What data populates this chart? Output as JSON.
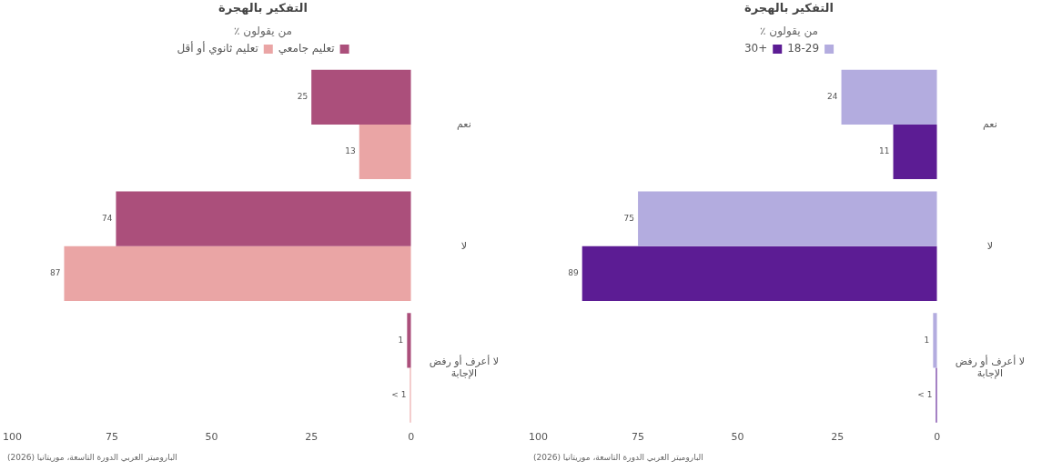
{
  "chart_data": [
    {
      "type": "bar",
      "orientation": "horizontal",
      "title": "التفكير بالهجرة",
      "subtitle": "٪ من يقولون",
      "categories": [
        "نعم",
        "لا",
        "لا أعرف أو رفض الإجابة"
      ],
      "series": [
        {
          "name": "تعليم جامعي",
          "color": "#ab4f7b",
          "values": [
            25,
            74,
            1
          ]
        },
        {
          "name": "تعليم ثانوي أو أقل",
          "color": "#eaa5a5",
          "values": [
            13,
            87,
            0.3
          ],
          "value_labels": [
            "13",
            "87",
            "< 1"
          ]
        }
      ],
      "xlim": [
        100,
        0
      ],
      "xticks": [
        100,
        75,
        50,
        25,
        0
      ],
      "grid": false,
      "legend": "top",
      "data_labels": true,
      "annotations": [
        "الباروميتر العربي الدورة التاسعة، موريتانيا (2026)"
      ]
    },
    {
      "type": "bar",
      "orientation": "horizontal",
      "title": "التفكير بالهجرة",
      "subtitle": "٪ من يقولون",
      "categories": [
        "نعم",
        "لا",
        "لا أعرف أو رفض الإجابة"
      ],
      "series": [
        {
          "name": "18-29",
          "color": "#b3acdf",
          "values": [
            24,
            75,
            1
          ]
        },
        {
          "name": "30+",
          "color": "#5c1c94",
          "values": [
            11,
            89,
            0.3
          ],
          "value_labels": [
            "11",
            "89",
            "< 1"
          ]
        }
      ],
      "xlim": [
        100,
        0
      ],
      "xticks": [
        100,
        75,
        50,
        25,
        0
      ],
      "grid": false,
      "legend": "top",
      "data_labels": true,
      "annotations": [
        "الباروميتر العربي الدورة التاسعة، موريتانيا (2026)"
      ]
    }
  ]
}
